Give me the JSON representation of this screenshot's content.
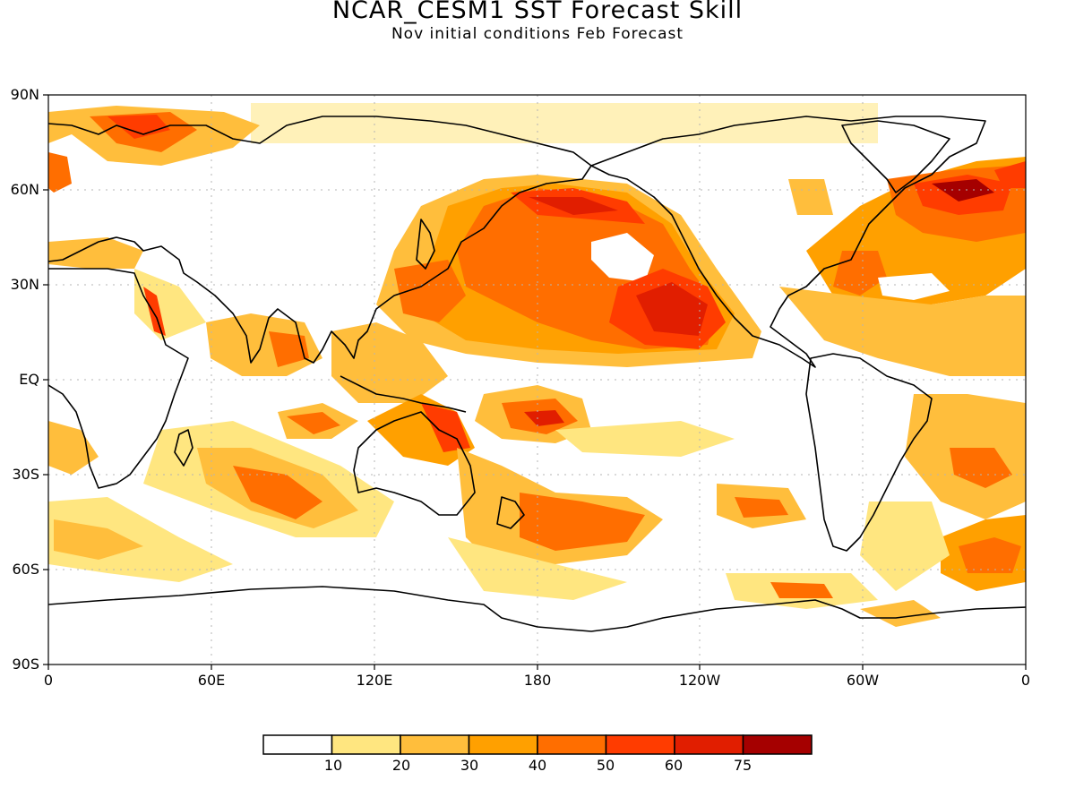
{
  "title": "NCAR_CESM1  SST Forecast Skill",
  "subtitle": "Nov initial conditions  Feb Forecast",
  "y_axis": {
    "ticks": [
      "90N",
      "60N",
      "30N",
      "EQ",
      "30S",
      "60S",
      "90S"
    ]
  },
  "x_axis": {
    "ticks": [
      "0",
      "60E",
      "120E",
      "180",
      "120W",
      "60W",
      "0"
    ]
  },
  "colorbar": {
    "colors": [
      "#ffffff",
      "#ffe680",
      "#ffbe3c",
      "#ffa000",
      "#ff6e00",
      "#ff3c00",
      "#e11e00",
      "#a50000"
    ],
    "labels": [
      "10",
      "20",
      "30",
      "40",
      "50",
      "60",
      "75"
    ]
  },
  "colors": {
    "land_outline": "#000000",
    "gridline": "#b4b4b4"
  }
}
